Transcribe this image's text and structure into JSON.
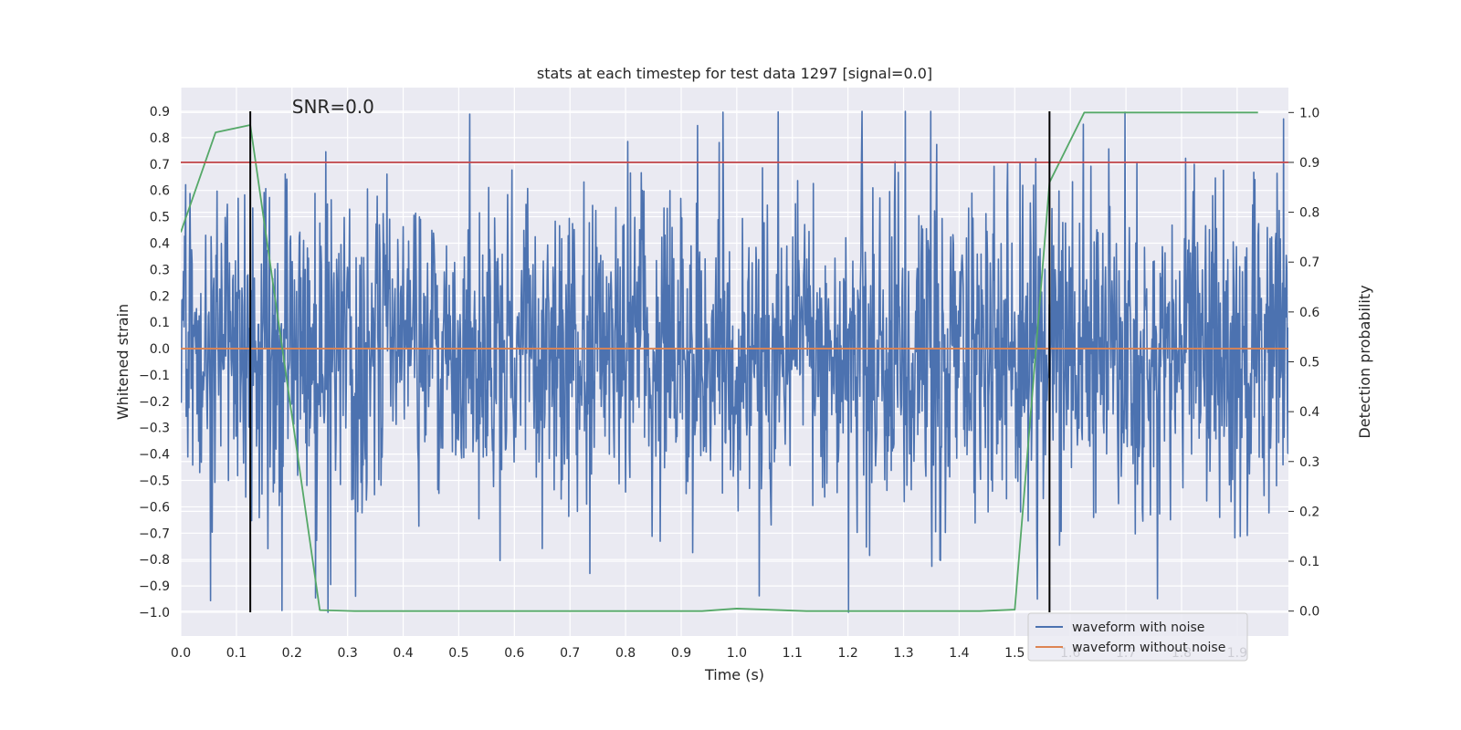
{
  "chart_data": {
    "type": "line",
    "title": "stats at each timestep for test data 1297 [signal=0.0]",
    "xlabel": "Time (s)",
    "ylabel_left": "Whitened strain",
    "ylabel_right": "Detection probability",
    "xlim": [
      0.0,
      1.9922
    ],
    "ylim_left": [
      -1.09,
      0.99
    ],
    "ylim_right": [
      -0.05,
      1.05
    ],
    "xticks": [
      "0.0",
      "0.1",
      "0.2",
      "0.3",
      "0.4",
      "0.5",
      "0.6",
      "0.7",
      "0.8",
      "0.9",
      "1.0",
      "1.1",
      "1.2",
      "1.3",
      "1.4",
      "1.5",
      "1.6",
      "1.7",
      "1.8",
      "1.9"
    ],
    "yticks_left": [
      "0.9",
      "0.8",
      "0.7",
      "0.6",
      "0.5",
      "0.4",
      "0.3",
      "0.2",
      "0.1",
      "0.0",
      "−0.1",
      "−0.2",
      "−0.3",
      "−0.4",
      "−0.5",
      "−0.6",
      "−0.7",
      "−0.8",
      "−0.9",
      "−1.0"
    ],
    "yticks_right": [
      "1.0",
      "0.9",
      "0.8",
      "0.7",
      "0.6",
      "0.5",
      "0.4",
      "0.3",
      "0.2",
      "0.1",
      "0.0"
    ],
    "annotation": "SNR=0.0",
    "legend": {
      "placement": "lower-right",
      "entries": [
        {
          "label": "waveform with noise",
          "color": "#4c72b0"
        },
        {
          "label": "waveform without noise",
          "color": "#dd8452"
        }
      ]
    },
    "series": [
      {
        "name": "waveform with noise",
        "axis": "left",
        "color": "#4c72b0",
        "noise": {
          "x_start": 0.0,
          "x_end": 1.9922,
          "n_points": 2048,
          "std": 0.31,
          "seed": 1297
        }
      },
      {
        "name": "waveform without noise",
        "axis": "left",
        "color": "#dd8452",
        "x": [
          0.0,
          1.9922
        ],
        "y": [
          0.0,
          0.0
        ]
      },
      {
        "name": "detection probability",
        "axis": "right",
        "color": "#55a868",
        "x": [
          0.0,
          0.0625,
          0.125,
          0.25,
          0.3125,
          0.9375,
          1.0,
          1.125,
          1.4375,
          1.5,
          1.5625,
          1.625,
          1.9375
        ],
        "y": [
          0.76,
          0.96,
          0.975,
          0.002,
          0.0,
          0.0,
          0.005,
          0.0,
          0.0,
          0.003,
          0.86,
          1.0,
          1.0
        ]
      },
      {
        "name": "threshold",
        "axis": "right",
        "color": "#c44e52",
        "x": [
          0.0,
          1.9922
        ],
        "y": [
          0.9,
          0.9
        ]
      }
    ],
    "vlines": [
      {
        "x": 0.125,
        "ymin": -1.0,
        "ymax": 0.9,
        "color": "#000000"
      },
      {
        "x": 1.5625,
        "ymin": -1.0,
        "ymax": 0.9,
        "color": "#000000"
      }
    ],
    "grid": true,
    "background": "#eaeaf2"
  }
}
